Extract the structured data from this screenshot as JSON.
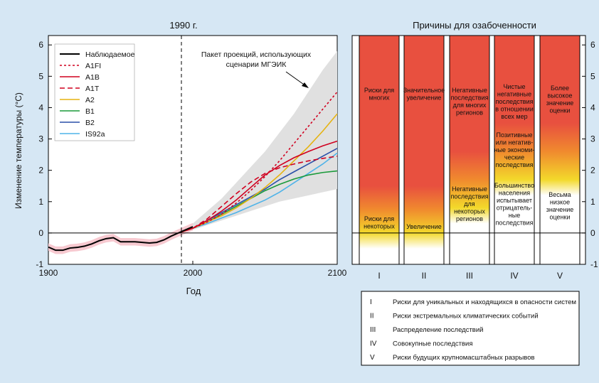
{
  "left_chart": {
    "top_label": "1990 г.",
    "xlabel": "Год",
    "ylabel": "Изменение температуры (°C)",
    "annotation": [
      "Пакет проекций, использующих",
      "сценарии МГЭИК"
    ],
    "legend_title": "Наблюдаемое"
  },
  "right_chart": {
    "title": "Причины для озабоченности"
  },
  "reasons": [
    {
      "numeral": "I",
      "description": "Риски для уникальных и находящихся в опасности систем",
      "top_text": [
        "Риски для",
        "многих"
      ],
      "bottom_text": [
        "Риски для",
        "некоторых"
      ]
    },
    {
      "numeral": "II",
      "description": "Риски экстремальных климатических событий",
      "top_text": [
        "Значительное",
        "увеличение"
      ],
      "bottom_text": [
        "Увеличение"
      ]
    },
    {
      "numeral": "III",
      "description": "Распределение последствий",
      "top_text": [
        "Негативные",
        "последствия",
        "для многих",
        "регионов"
      ],
      "bottom_text": [
        "Негативные",
        "последствия",
        "для",
        "некоторых",
        "регионов"
      ]
    },
    {
      "numeral": "IV",
      "description": "Совокупные последствия",
      "top_text": [
        "Чистые",
        "негативные",
        "последствия",
        "в отношении",
        "всех мер"
      ],
      "middle_text": [
        "Позитивные",
        "или негатив-",
        "ные экономи-",
        "ческие",
        "последствия"
      ],
      "bottom_text": [
        "Большинство",
        "населения",
        "испытывает",
        "отрицатель-",
        "ные",
        "последствия"
      ]
    },
    {
      "numeral": "V",
      "description": "Риски будущих крупномасштабных разрывов",
      "top_text": [
        "Более",
        "высокое",
        "значение",
        "оценки"
      ],
      "bottom_text": [
        "Весьма",
        "низкое",
        "значение",
        "оценки"
      ]
    }
  ],
  "chart_data": [
    {
      "type": "line",
      "title": "",
      "xlabel": "Год",
      "ylabel": "Изменение температуры (°C)",
      "xlim": [
        1900,
        2100
      ],
      "ylim": [
        -1,
        6.3
      ],
      "xticks": [
        1900,
        2000,
        2100
      ],
      "yticks": [
        -1,
        0,
        1,
        2,
        3,
        4,
        5,
        6
      ],
      "legend": "top-left",
      "envelope": {
        "name": "Пакет проекций, использующих сценарии МГЭИК",
        "color": "#e0e0e0",
        "x": [
          1990,
          2000,
          2010,
          2020,
          2030,
          2040,
          2050,
          2060,
          2070,
          2080,
          2090,
          2100
        ],
        "upper": [
          0.03,
          0.3,
          0.7,
          1.1,
          1.6,
          2.1,
          2.6,
          3.2,
          3.8,
          4.5,
          5.2,
          5.8
        ],
        "lower": [
          -0.03,
          0.1,
          0.25,
          0.4,
          0.55,
          0.7,
          0.85,
          1.0,
          1.1,
          1.2,
          1.3,
          1.4
        ]
      },
      "series": [
        {
          "name": "Наблюдаемое",
          "color": "#000000",
          "dash": "solid",
          "x": [
            1900,
            1905,
            1910,
            1915,
            1920,
            1925,
            1930,
            1935,
            1940,
            1945,
            1950,
            1955,
            1960,
            1965,
            1970,
            1975,
            1980,
            1985,
            1990,
            1995,
            2000
          ],
          "y": [
            -0.45,
            -0.55,
            -0.55,
            -0.48,
            -0.46,
            -0.42,
            -0.35,
            -0.25,
            -0.18,
            -0.15,
            -0.28,
            -0.28,
            -0.28,
            -0.3,
            -0.32,
            -0.3,
            -0.22,
            -0.1,
            0.0,
            0.1,
            0.2
          ]
        },
        {
          "name": "A1FI",
          "color": "#d0001f",
          "dash": "3,3",
          "x": [
            1990,
            2000,
            2010,
            2020,
            2030,
            2040,
            2050,
            2060,
            2070,
            2080,
            2090,
            2100
          ],
          "y": [
            0,
            0.15,
            0.35,
            0.6,
            0.95,
            1.35,
            1.8,
            2.3,
            2.85,
            3.4,
            3.95,
            4.5
          ]
        },
        {
          "name": "A1B",
          "color": "#d0001f",
          "dash": "solid",
          "x": [
            1990,
            2000,
            2010,
            2020,
            2030,
            2040,
            2050,
            2060,
            2070,
            2080,
            2090,
            2100
          ],
          "y": [
            0,
            0.15,
            0.4,
            0.7,
            1.05,
            1.45,
            1.85,
            2.15,
            2.4,
            2.6,
            2.78,
            2.93
          ]
        },
        {
          "name": "A1T",
          "color": "#d0001f",
          "dash": "7,4",
          "x": [
            1990,
            2000,
            2010,
            2020,
            2030,
            2040,
            2050,
            2060,
            2070,
            2080,
            2090,
            2100
          ],
          "y": [
            0,
            0.15,
            0.45,
            0.85,
            1.25,
            1.62,
            1.9,
            2.08,
            2.2,
            2.3,
            2.38,
            2.45
          ]
        },
        {
          "name": "A2",
          "color": "#e5b311",
          "dash": "solid",
          "x": [
            1990,
            2000,
            2010,
            2020,
            2030,
            2040,
            2050,
            2060,
            2070,
            2080,
            2090,
            2100
          ],
          "y": [
            0,
            0.15,
            0.35,
            0.55,
            0.8,
            1.1,
            1.45,
            1.85,
            2.3,
            2.75,
            3.25,
            3.8
          ]
        },
        {
          "name": "B1",
          "color": "#1a9a3a",
          "dash": "solid",
          "x": [
            1990,
            2000,
            2010,
            2020,
            2030,
            2040,
            2050,
            2060,
            2070,
            2080,
            2090,
            2100
          ],
          "y": [
            0,
            0.15,
            0.35,
            0.6,
            0.85,
            1.1,
            1.35,
            1.55,
            1.72,
            1.85,
            1.93,
            1.98
          ]
        },
        {
          "name": "B2",
          "color": "#2a4fa8",
          "dash": "solid",
          "x": [
            1990,
            2000,
            2010,
            2020,
            2030,
            2040,
            2050,
            2060,
            2070,
            2080,
            2090,
            2100
          ],
          "y": [
            0,
            0.15,
            0.4,
            0.65,
            0.9,
            1.15,
            1.4,
            1.7,
            1.95,
            2.2,
            2.45,
            2.7
          ]
        },
        {
          "name": "IS92a",
          "color": "#4fb3e8",
          "dash": "solid",
          "x": [
            1990,
            2000,
            2010,
            2020,
            2030,
            2040,
            2050,
            2060,
            2070,
            2080,
            2090,
            2100
          ],
          "y": [
            0,
            0.15,
            0.3,
            0.48,
            0.65,
            0.85,
            1.05,
            1.3,
            1.6,
            1.9,
            2.2,
            2.55
          ]
        }
      ]
    },
    {
      "type": "heatmap",
      "title": "Причины для озабоченности",
      "ylim": [
        -1,
        6.3
      ],
      "yticks": [
        -1,
        0,
        1,
        2,
        3,
        4,
        5,
        6
      ],
      "categories": [
        "I",
        "II",
        "III",
        "IV",
        "V"
      ],
      "color_scale": [
        "#ffffff",
        "#f3d92b",
        "#e8503f"
      ],
      "threshold_yellow": [
        0.0,
        0.0,
        0.8,
        1.7,
        1.7
      ],
      "threshold_red": [
        1.5,
        1.5,
        2.6,
        3.5,
        3.5
      ]
    }
  ]
}
